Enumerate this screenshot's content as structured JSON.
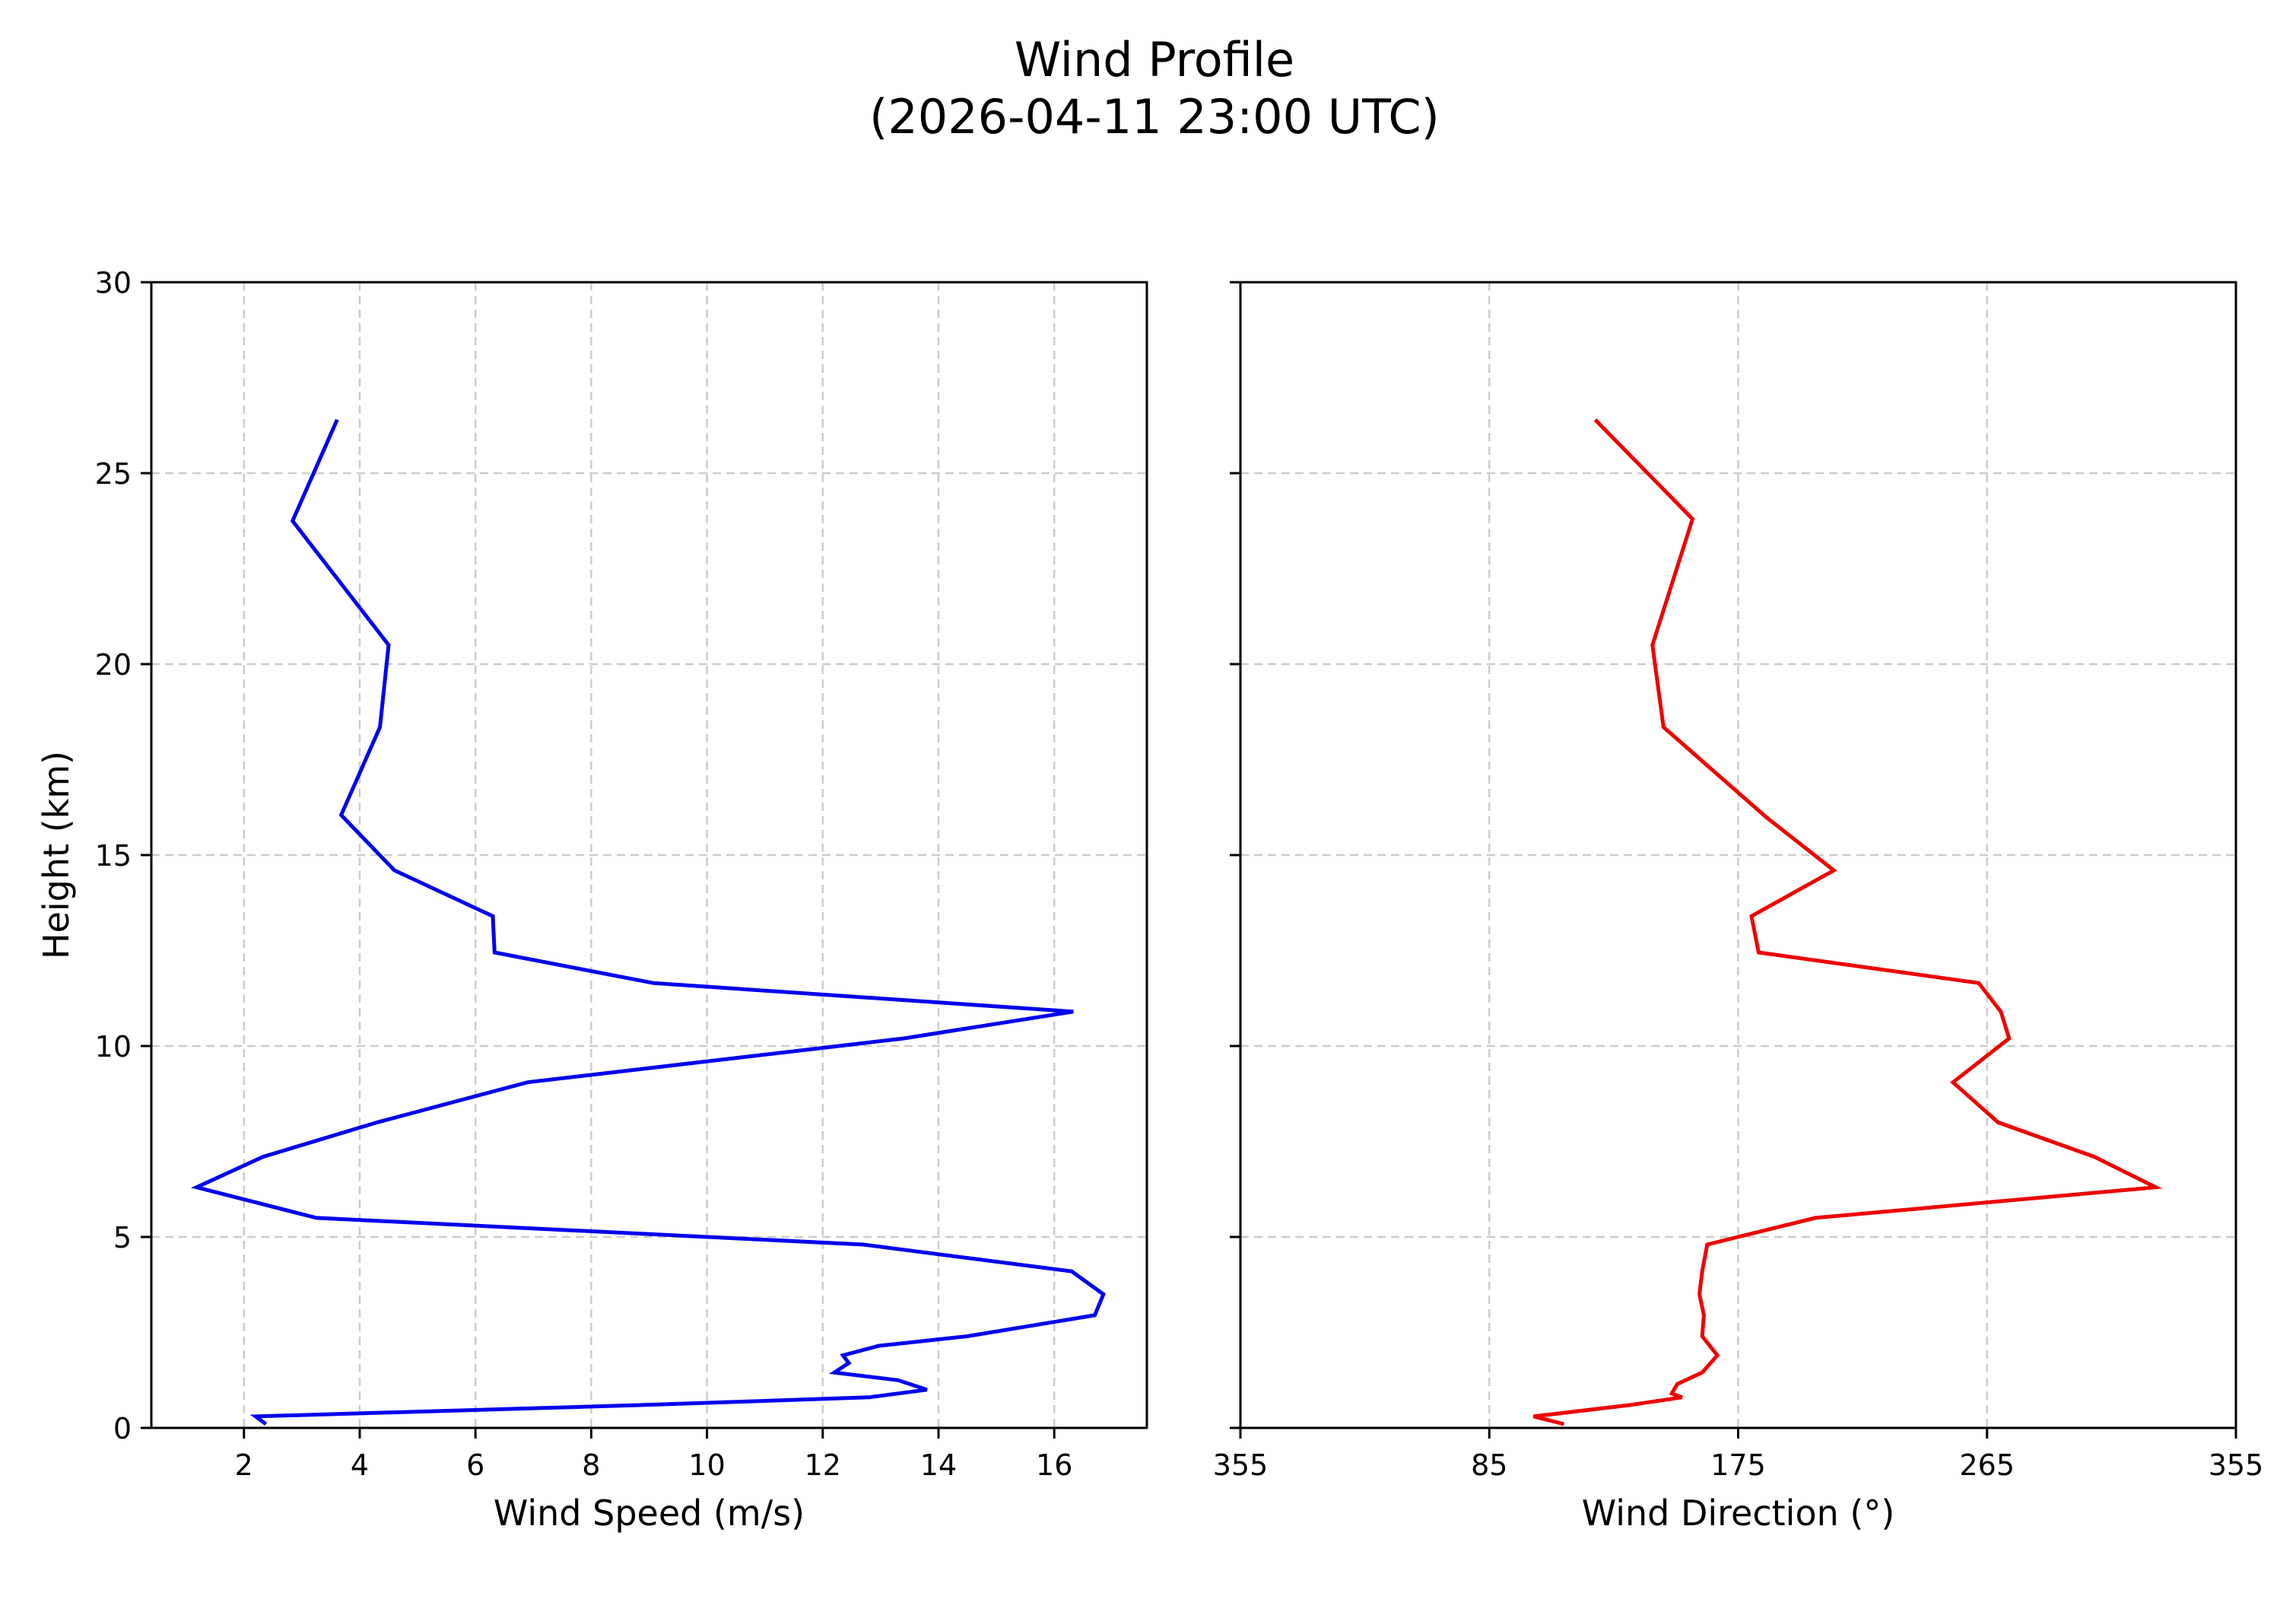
{
  "figure": {
    "title_line1": "Wind Profile",
    "title_line2": "(2026-04-11 23:00 UTC)"
  },
  "chart_data": [
    {
      "type": "line",
      "title": "",
      "xlabel": "Wind Speed (m/s)",
      "ylabel": "Height (km)",
      "xlim": [
        0.4,
        17.6
      ],
      "ylim": [
        0,
        30
      ],
      "xticks": [
        2,
        4,
        6,
        8,
        10,
        12,
        14,
        16
      ],
      "yticks": [
        0,
        5,
        10,
        15,
        20,
        25,
        30
      ],
      "grid": true,
      "color": "#0000ee",
      "series": [
        {
          "name": "Wind Speed",
          "x": [
            2.38,
            2.2,
            8.9,
            12.8,
            13.8,
            13.3,
            12.2,
            12.45,
            12.35,
            12.97,
            14.5,
            16.7,
            16.85,
            16.3,
            12.7,
            3.25,
            1.18,
            2.33,
            4.3,
            6.9,
            13.4,
            16.33,
            9.07,
            6.33,
            6.3,
            4.6,
            3.68,
            4.35,
            4.5,
            2.84,
            3.61
          ],
          "y": [
            0.1,
            0.3,
            0.6,
            0.8,
            1.0,
            1.25,
            1.45,
            1.7,
            1.9,
            2.15,
            2.4,
            2.95,
            3.5,
            4.1,
            4.8,
            5.5,
            6.3,
            7.1,
            8.0,
            9.05,
            10.2,
            10.9,
            11.65,
            12.45,
            13.4,
            14.6,
            16.05,
            18.35,
            20.5,
            23.75,
            26.4
          ]
        }
      ]
    },
    {
      "type": "line",
      "title": "",
      "xlabel": "Wind Direction (°)",
      "ylabel": "",
      "xlim": [
        -5,
        355
      ],
      "ylim": [
        0,
        30
      ],
      "xticks": [
        -5,
        85,
        175,
        265,
        355
      ],
      "xtick_labels": [
        "355",
        "85",
        "175",
        "265",
        "355"
      ],
      "yticks": [
        0,
        5,
        10,
        15,
        20,
        25,
        30
      ],
      "grid": true,
      "color": "#ee0000",
      "series": [
        {
          "name": "Wind Direction",
          "x": [
            112,
            101,
            136,
            154.7,
            151,
            153,
            162,
            167.5,
            162,
            162.6,
            161,
            162,
            163.8,
            203,
            326,
            303.8,
            269,
            252.7,
            273,
            270,
            262,
            182.4,
            179.8,
            209.6,
            185,
            148,
            144,
            158.5,
            123.3
          ],
          "y": [
            0.1,
            0.3,
            0.6,
            0.8,
            0.9,
            1.15,
            1.45,
            1.9,
            2.4,
            2.95,
            3.5,
            4.1,
            4.8,
            5.5,
            6.3,
            7.1,
            8.0,
            9.05,
            10.2,
            10.9,
            11.65,
            12.45,
            13.4,
            14.6,
            16.0,
            18.35,
            20.5,
            23.8,
            26.4
          ]
        }
      ]
    }
  ]
}
